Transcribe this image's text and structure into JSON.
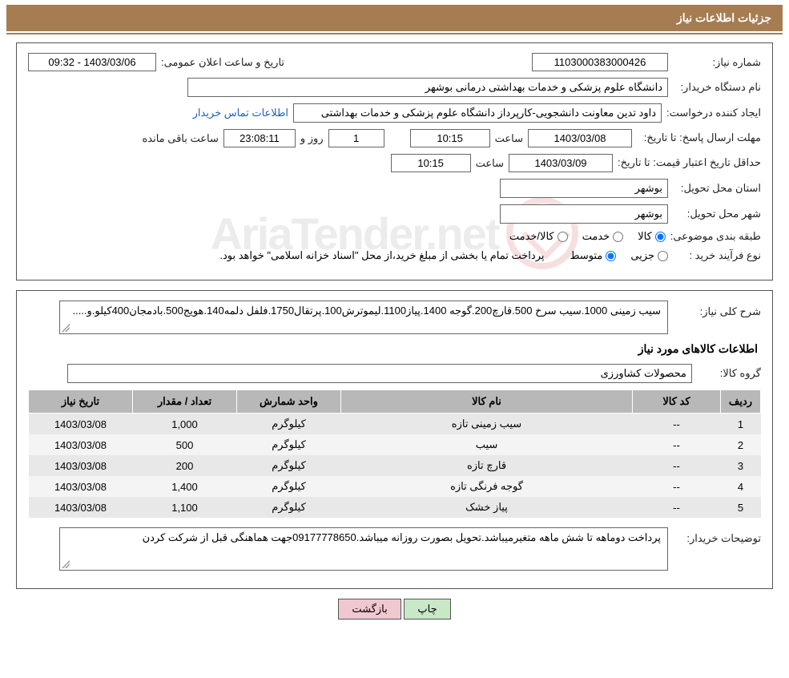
{
  "header": {
    "title": "جزئیات اطلاعات نیاز"
  },
  "details": {
    "need_number_label": "شماره نیاز:",
    "need_number": "1103000383000426",
    "announce_label": "تاریخ و ساعت اعلان عمومی:",
    "announce_value": "1403/03/06 - 09:32",
    "buyer_label": "نام دستگاه خریدار:",
    "buyer_value": "دانشگاه علوم پزشکی و خدمات بهداشتی درمانی بوشهر",
    "requester_label": "ایجاد کننده درخواست:",
    "requester_value": "داود تدین معاونت دانشجویی-کارپرداز دانشگاه علوم پزشکی و خدمات بهداشتی",
    "contact_link": "اطلاعات تماس خریدار",
    "deadline_label": "مهلت ارسال پاسخ: تا تاریخ:",
    "deadline_date": "1403/03/08",
    "time_label": "ساعت",
    "deadline_time": "10:15",
    "day_label": "روز و",
    "days_remaining": "1",
    "countdown": "23:08:11",
    "remaining_label": "ساعت باقی مانده",
    "validity_label": "حداقل تاریخ اعتبار قیمت: تا تاریخ:",
    "validity_date": "1403/03/09",
    "validity_time": "10:15",
    "province_label": "استان محل تحویل:",
    "province_value": "بوشهر",
    "city_label": "شهر محل تحویل:",
    "city_value": "بوشهر",
    "category_label": "طبقه بندی موضوعی:",
    "cat_goods": "کالا",
    "cat_service": "خدمت",
    "cat_goods_service": "کالا/خدمت",
    "process_label": "نوع فرآیند خرید :",
    "proc_minor": "جزیی",
    "proc_medium": "متوسط",
    "payment_note": "پرداخت تمام یا بخشی از مبلغ خرید،از محل \"اسناد خزانه اسلامی\" خواهد بود."
  },
  "need_info": {
    "overview_label": "شرح کلی نیاز:",
    "overview_text": "سیب زمینی 1000.سیب سرخ 500.قارچ200.گوجه 1400.پیاز1100.لیموترش100.پرتقال1750.فلفل دلمه140.هویج500.بادمجان400کیلو.و.....",
    "goods_header": "اطلاعات کالاهای مورد نیاز",
    "group_label": "گروه کالا:",
    "group_value": "محصولات کشاورزی",
    "columns": {
      "row": "ردیف",
      "code": "کد کالا",
      "name": "نام کالا",
      "unit": "واحد شمارش",
      "qty": "تعداد / مقدار",
      "date": "تاریخ نیاز"
    },
    "rows": [
      {
        "n": "1",
        "code": "--",
        "name": "سیب زمینی تازه",
        "unit": "کیلوگرم",
        "qty": "1,000",
        "date": "1403/03/08"
      },
      {
        "n": "2",
        "code": "--",
        "name": "سیب",
        "unit": "کیلوگرم",
        "qty": "500",
        "date": "1403/03/08"
      },
      {
        "n": "3",
        "code": "--",
        "name": "قارچ تازه",
        "unit": "کیلوگرم",
        "qty": "200",
        "date": "1403/03/08"
      },
      {
        "n": "4",
        "code": "--",
        "name": "گوجه فرنگی تازه",
        "unit": "کیلوگرم",
        "qty": "1,400",
        "date": "1403/03/08"
      },
      {
        "n": "5",
        "code": "--",
        "name": "پیاز خشک",
        "unit": "کیلوگرم",
        "qty": "1,100",
        "date": "1403/03/08"
      }
    ],
    "buyer_notes_label": "توضیحات خریدار:",
    "buyer_notes_text": "پرداخت دوماهه تا شش ماهه متغیرمیباشد.تحویل بصورت روزانه میباشد.09177778650جهت هماهنگی قبل از شرکت کردن"
  },
  "buttons": {
    "print": "چاپ",
    "back": "بازگشت"
  },
  "colors": {
    "header_bg": "#a67c52",
    "table_header_bg": "#b8b8b8",
    "row_even": "#f4f4f4",
    "row_odd": "#e8e8e8",
    "link": "#2060c0",
    "btn_print": "#c8e8c8",
    "btn_back": "#f0c8d0"
  },
  "watermark": {
    "text": "AriaTender.net"
  }
}
